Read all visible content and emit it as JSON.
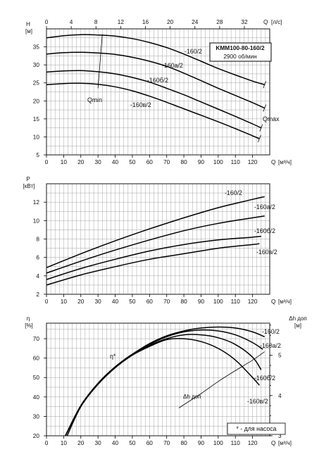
{
  "chart_data": [
    {
      "type": "line",
      "title": "KMM100-80-160/2",
      "subtitle": "2900 об/мин",
      "ylabel": "H",
      "yunit": "[м]",
      "xlabel": "Q",
      "xunit": "[м³/ч]",
      "x2label": "Q",
      "x2unit": "[л/с]",
      "xlim": [
        0,
        130
      ],
      "ylim": [
        5,
        40
      ],
      "x2lim": [
        0,
        36.1
      ],
      "xticks": [
        "0",
        "10",
        "20",
        "30",
        "40",
        "50",
        "60",
        "70",
        "80",
        "90",
        "100",
        "110",
        "120"
      ],
      "yticks": [
        "5",
        "10",
        "15",
        "20",
        "25",
        "30",
        "35"
      ],
      "x2ticks": [
        "0",
        "4",
        "8",
        "12",
        "16",
        "20",
        "24",
        "28",
        "32"
      ],
      "grid": true,
      "series": [
        {
          "name": "-160/2",
          "x": [
            0,
            10,
            20,
            30,
            40,
            50,
            60,
            70,
            80,
            90,
            100,
            110,
            120,
            127
          ],
          "y": [
            37.5,
            38.1,
            38.4,
            38.3,
            38.0,
            37.3,
            36.2,
            34.8,
            33.0,
            31.0,
            29.0,
            27.2,
            25.5,
            24.5
          ]
        },
        {
          "name": "-160а/2",
          "x": [
            0,
            10,
            20,
            30,
            40,
            50,
            60,
            70,
            80,
            90,
            100,
            110,
            120,
            127
          ],
          "y": [
            33.0,
            33.4,
            33.5,
            33.3,
            32.9,
            32.1,
            31.0,
            29.6,
            27.7,
            25.6,
            23.5,
            21.5,
            19.5,
            18.0
          ]
        },
        {
          "name": "-160б/2",
          "x": [
            0,
            10,
            20,
            30,
            40,
            50,
            60,
            70,
            80,
            90,
            100,
            110,
            120,
            125
          ],
          "y": [
            28.0,
            28.3,
            28.4,
            28.1,
            27.5,
            26.5,
            25.2,
            23.5,
            21.7,
            19.7,
            17.7,
            15.7,
            13.6,
            12.5
          ]
        },
        {
          "name": "-160в/2",
          "x": [
            0,
            10,
            20,
            30,
            40,
            50,
            60,
            70,
            80,
            90,
            100,
            110,
            120,
            124
          ],
          "y": [
            24.5,
            24.8,
            24.9,
            24.6,
            23.9,
            22.8,
            21.3,
            19.6,
            17.8,
            16.0,
            14.2,
            12.3,
            10.3,
            9.5
          ]
        }
      ],
      "annotations": [
        {
          "text": "Qmin",
          "x": 24,
          "y": 21.5
        },
        {
          "text": "Qmax",
          "x": 121,
          "y": 15.5
        }
      ],
      "qmin_line": {
        "x": [
          32.5,
          30
        ],
        "y": [
          38.5,
          23.5
        ]
      },
      "qmax_marks": [
        {
          "x": 127,
          "y": 24.5
        },
        {
          "x": 127,
          "y": 18.0
        },
        {
          "x": 125,
          "y": 12.5
        },
        {
          "x": 124,
          "y": 9.5
        }
      ]
    },
    {
      "type": "line",
      "ylabel": "P",
      "yunit": "[кВт]",
      "xlabel": "Q",
      "xunit": "[м³/ч]",
      "xlim": [
        0,
        130
      ],
      "ylim": [
        2,
        14
      ],
      "xticks": [
        "0",
        "10",
        "20",
        "30",
        "40",
        "50",
        "60",
        "70",
        "80",
        "90",
        "100",
        "110",
        "120"
      ],
      "yticks": [
        "2",
        "4",
        "6",
        "8",
        "10",
        "12"
      ],
      "grid": true,
      "series": [
        {
          "name": "-160/2",
          "x": [
            0,
            20,
            40,
            60,
            80,
            100,
            120,
            127
          ],
          "y": [
            4.9,
            6.4,
            7.8,
            9.1,
            10.3,
            11.4,
            12.3,
            12.6
          ]
        },
        {
          "name": "-160а/2",
          "x": [
            0,
            20,
            40,
            60,
            80,
            100,
            120,
            127
          ],
          "y": [
            4.3,
            5.6,
            6.8,
            7.9,
            8.9,
            9.7,
            10.3,
            10.5
          ]
        },
        {
          "name": "-160б/2",
          "x": [
            0,
            20,
            40,
            60,
            80,
            100,
            120,
            125
          ],
          "y": [
            3.6,
            4.8,
            5.8,
            6.7,
            7.4,
            7.9,
            8.2,
            8.3
          ]
        },
        {
          "name": "-160в/2",
          "x": [
            0,
            20,
            40,
            60,
            80,
            100,
            120,
            124
          ],
          "y": [
            3.0,
            4.1,
            5.0,
            5.8,
            6.4,
            7.0,
            7.4,
            7.5
          ]
        }
      ]
    },
    {
      "type": "line",
      "ylabel": "η",
      "yunit": "[%]",
      "y2label": "Δh доп",
      "y2unit": "[м]",
      "xlabel": "Q",
      "xunit": "[м³/ч]",
      "xlim": [
        0,
        130
      ],
      "ylim": [
        20,
        78
      ],
      "y2lim": [
        3,
        5.8
      ],
      "xticks": [
        "0",
        "10",
        "20",
        "30",
        "40",
        "50",
        "60",
        "70",
        "80",
        "90",
        "100",
        "110",
        "120"
      ],
      "yticks": [
        "20",
        "30",
        "40",
        "50",
        "60",
        "70"
      ],
      "y2ticks": [
        "3",
        "4",
        "5"
      ],
      "grid": true,
      "series": [
        {
          "name": "-160/2",
          "x": [
            11,
            20,
            30,
            40,
            50,
            60,
            70,
            80,
            90,
            100,
            110,
            120,
            127
          ],
          "y": [
            20,
            35.5,
            47,
            55.5,
            62,
            67.5,
            71.5,
            74,
            75.5,
            76,
            75.5,
            73.5,
            71
          ]
        },
        {
          "name": "-160а/2",
          "x": [
            11,
            20,
            30,
            40,
            50,
            60,
            70,
            80,
            90,
            100,
            110,
            120,
            126
          ],
          "y": [
            20,
            35.5,
            47,
            55.5,
            62,
            67,
            71,
            73.5,
            74.5,
            74,
            72,
            68,
            64.5
          ]
        },
        {
          "name": "-160б/2",
          "x": [
            11,
            20,
            30,
            40,
            50,
            60,
            70,
            80,
            90,
            100,
            110,
            120,
            125
          ],
          "y": [
            20,
            35.5,
            47,
            55.5,
            62,
            66.5,
            70,
            72,
            72,
            70.5,
            67,
            60.5,
            54
          ]
        },
        {
          "name": "-160в/2",
          "x": [
            12,
            20,
            30,
            40,
            50,
            60,
            70,
            80,
            90,
            100,
            110,
            120,
            124
          ],
          "y": [
            20,
            35,
            46.5,
            55,
            61.5,
            66,
            69.5,
            70,
            68.5,
            65,
            59,
            50,
            46
          ]
        },
        {
          "name": "Δh доп",
          "axis": "right",
          "x": [
            77,
            90,
            100,
            110,
            120,
            127
          ],
          "y": [
            3.69,
            4.05,
            4.35,
            4.62,
            4.88,
            5.09
          ]
        }
      ],
      "annotations": [
        {
          "text": "η*",
          "x": 40,
          "y": 60
        },
        {
          "text": "* - для насоса"
        }
      ]
    }
  ]
}
